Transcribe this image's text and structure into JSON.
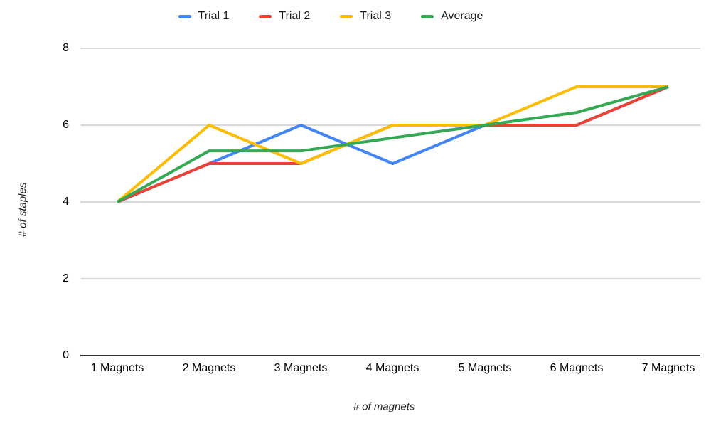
{
  "chart_data": {
    "type": "line",
    "title": "",
    "xlabel": "# of magnets",
    "ylabel": "# of staples",
    "categories": [
      "1 Magnets",
      "2 Magnets",
      "3 Magnets",
      "4 Magnets",
      "5 Magnets",
      "6 Magnets",
      "7 Magnets"
    ],
    "ylim": [
      0,
      8
    ],
    "ytick_labels": [
      "8",
      "6",
      "4",
      "2",
      "0"
    ],
    "ytick_values": [
      8,
      6,
      4,
      2,
      0
    ],
    "grid": true,
    "legend_position": "top",
    "series": [
      {
        "name": "Trial 1",
        "color": "#4285F4",
        "values": [
          4,
          5,
          6,
          5,
          6,
          6,
          7
        ]
      },
      {
        "name": "Trial 2",
        "color": "#EA4335",
        "values": [
          4,
          5,
          5,
          6,
          6,
          6,
          7
        ]
      },
      {
        "name": "Trial 3",
        "color": "#FBBC04",
        "values": [
          4,
          6,
          5,
          6,
          6,
          7,
          7
        ]
      },
      {
        "name": "Average",
        "color": "#34A853",
        "values": [
          4,
          5.33,
          5.33,
          5.67,
          6,
          6.33,
          7
        ]
      }
    ],
    "colors": {
      "gridline": "#cccccc",
      "axis_line": "#333333",
      "text": "#000000"
    }
  }
}
